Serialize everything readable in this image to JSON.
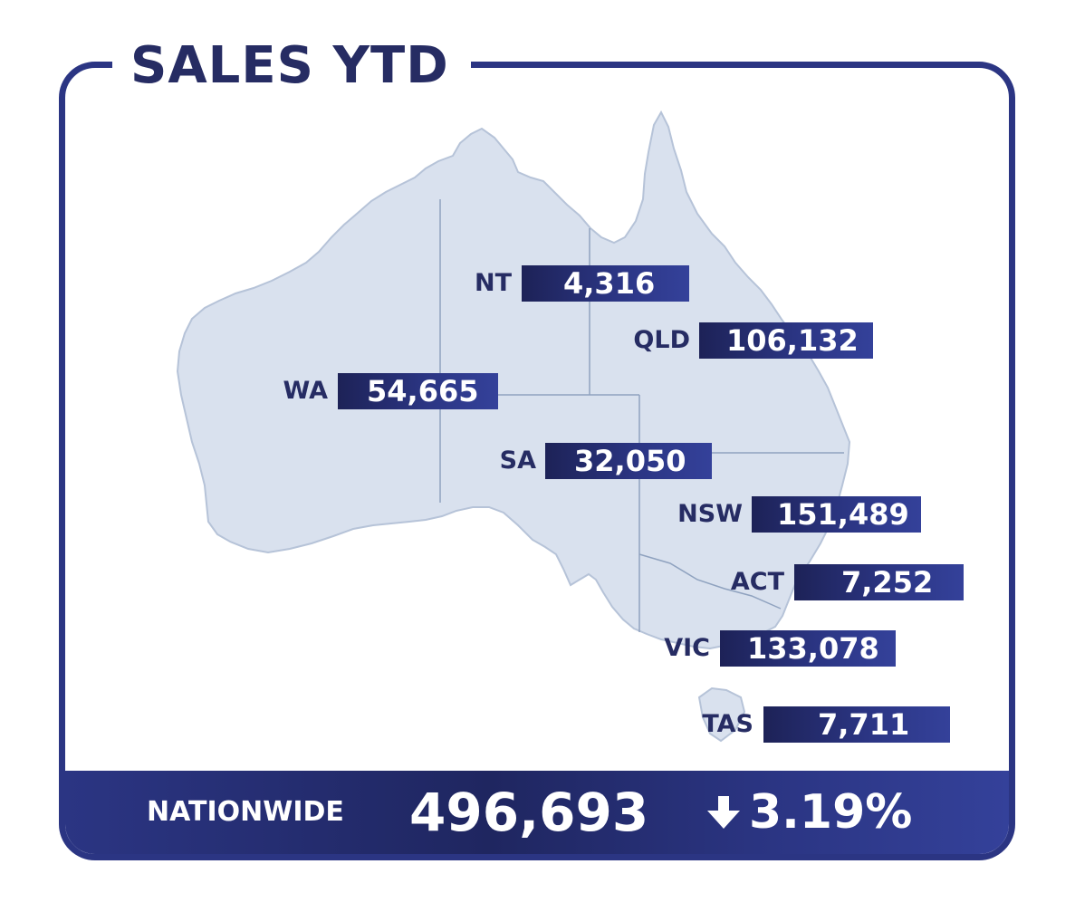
{
  "title": "SALES YTD",
  "states": [
    {
      "code": "NT",
      "value": "4,316"
    },
    {
      "code": "QLD",
      "value": "106,132"
    },
    {
      "code": "WA",
      "value": "54,665"
    },
    {
      "code": "SA",
      "value": "32,050"
    },
    {
      "code": "NSW",
      "value": "151,489"
    },
    {
      "code": "ACT",
      "value": "7,252"
    },
    {
      "code": "VIC",
      "value": "133,078"
    },
    {
      "code": "TAS",
      "value": "7,711"
    }
  ],
  "footer": {
    "label": "NATIONWIDE",
    "total": "496,693",
    "change": "3.19%",
    "change_direction": "down",
    "change_icon": "arrow-down-icon"
  },
  "colors": {
    "frame": "#2b3583",
    "title": "#262c63",
    "map_fill": "#d9e1ee",
    "map_border": "#8fa2bf",
    "value_box_dark": "#1d2257",
    "value_box_light": "#34419a"
  }
}
